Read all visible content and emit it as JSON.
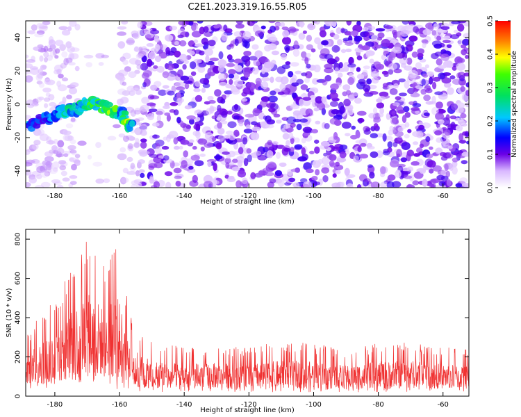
{
  "title": "C2E1.2023.319.16.55.R05",
  "chart_data": [
    {
      "type": "heatmap",
      "xlabel": "Height of straight line (km)",
      "ylabel": "Frequency (Hz)",
      "xlim": [
        -189,
        -52
      ],
      "ylim": [
        -50,
        50
      ],
      "xticks": [
        -180,
        -160,
        -140,
        -120,
        -100,
        -80,
        -60
      ],
      "yticks": [
        -40,
        -20,
        0,
        20,
        40
      ],
      "colorbar": {
        "label": "Normalized spectral amplitude",
        "range": [
          0,
          0.5
        ],
        "ticks": [
          0.0,
          0.1,
          0.2,
          0.3,
          0.4,
          0.5
        ]
      },
      "noise_region": {
        "x": [
          -153,
          -52
        ],
        "amplitude": 0.1
      },
      "quiet_region": {
        "x": [
          -189,
          -153
        ],
        "amplitude": 0.03
      },
      "signal_band": [
        {
          "x": -188,
          "y": -13,
          "amplitude": 0.2
        },
        {
          "x": -185,
          "y": -11,
          "amplitude": 0.15
        },
        {
          "x": -182,
          "y": -8,
          "amplitude": 0.18
        },
        {
          "x": -179,
          "y": -5,
          "amplitude": 0.2
        },
        {
          "x": -176,
          "y": -3,
          "amplitude": 0.25
        },
        {
          "x": -173,
          "y": -3,
          "amplitude": 0.22
        },
        {
          "x": -171,
          "y": 0,
          "amplitude": 0.3
        },
        {
          "x": -168,
          "y": 0,
          "amplitude": 0.3
        },
        {
          "x": -165,
          "y": -1,
          "amplitude": 0.28
        },
        {
          "x": -162,
          "y": -4,
          "amplitude": 0.4
        },
        {
          "x": -159,
          "y": -6,
          "amplitude": 0.2
        },
        {
          "x": -158,
          "y": -13,
          "amplitude": 0.4
        },
        {
          "x": -156,
          "y": -13,
          "amplitude": 0.2
        }
      ]
    },
    {
      "type": "line",
      "xlabel": "Height of straight line (km)",
      "ylabel": "SNR (10 * v/v)",
      "xlim": [
        -189,
        -52
      ],
      "ylim": [
        0,
        850
      ],
      "xticks": [
        -180,
        -160,
        -140,
        -120,
        -100,
        -80,
        -60
      ],
      "yticks": [
        0,
        200,
        400,
        600,
        800
      ],
      "color": "#f03232",
      "envelope": [
        {
          "x": -189,
          "low": 20,
          "high": 320
        },
        {
          "x": -185,
          "low": 30,
          "high": 400
        },
        {
          "x": -182,
          "low": 30,
          "high": 480
        },
        {
          "x": -179,
          "low": 40,
          "high": 530
        },
        {
          "x": -176,
          "low": 40,
          "high": 620
        },
        {
          "x": -172,
          "low": 50,
          "high": 760
        },
        {
          "x": -170,
          "low": 60,
          "high": 830
        },
        {
          "x": -167,
          "low": 50,
          "high": 760
        },
        {
          "x": -164,
          "low": 40,
          "high": 640
        },
        {
          "x": -161,
          "low": 30,
          "high": 850
        },
        {
          "x": -158,
          "low": 30,
          "high": 530
        },
        {
          "x": -156,
          "low": 20,
          "high": 400
        },
        {
          "x": -153,
          "low": 20,
          "high": 310
        },
        {
          "x": -150,
          "low": 20,
          "high": 280
        },
        {
          "x": -140,
          "low": 20,
          "high": 250
        },
        {
          "x": -130,
          "low": 20,
          "high": 260
        },
        {
          "x": -120,
          "low": 20,
          "high": 250
        },
        {
          "x": -110,
          "low": 20,
          "high": 280
        },
        {
          "x": -100,
          "low": 20,
          "high": 270
        },
        {
          "x": -90,
          "low": 20,
          "high": 240
        },
        {
          "x": -80,
          "low": 20,
          "high": 270
        },
        {
          "x": -70,
          "low": 20,
          "high": 280
        },
        {
          "x": -60,
          "low": 20,
          "high": 250
        },
        {
          "x": -52,
          "low": 20,
          "high": 240
        }
      ]
    }
  ]
}
